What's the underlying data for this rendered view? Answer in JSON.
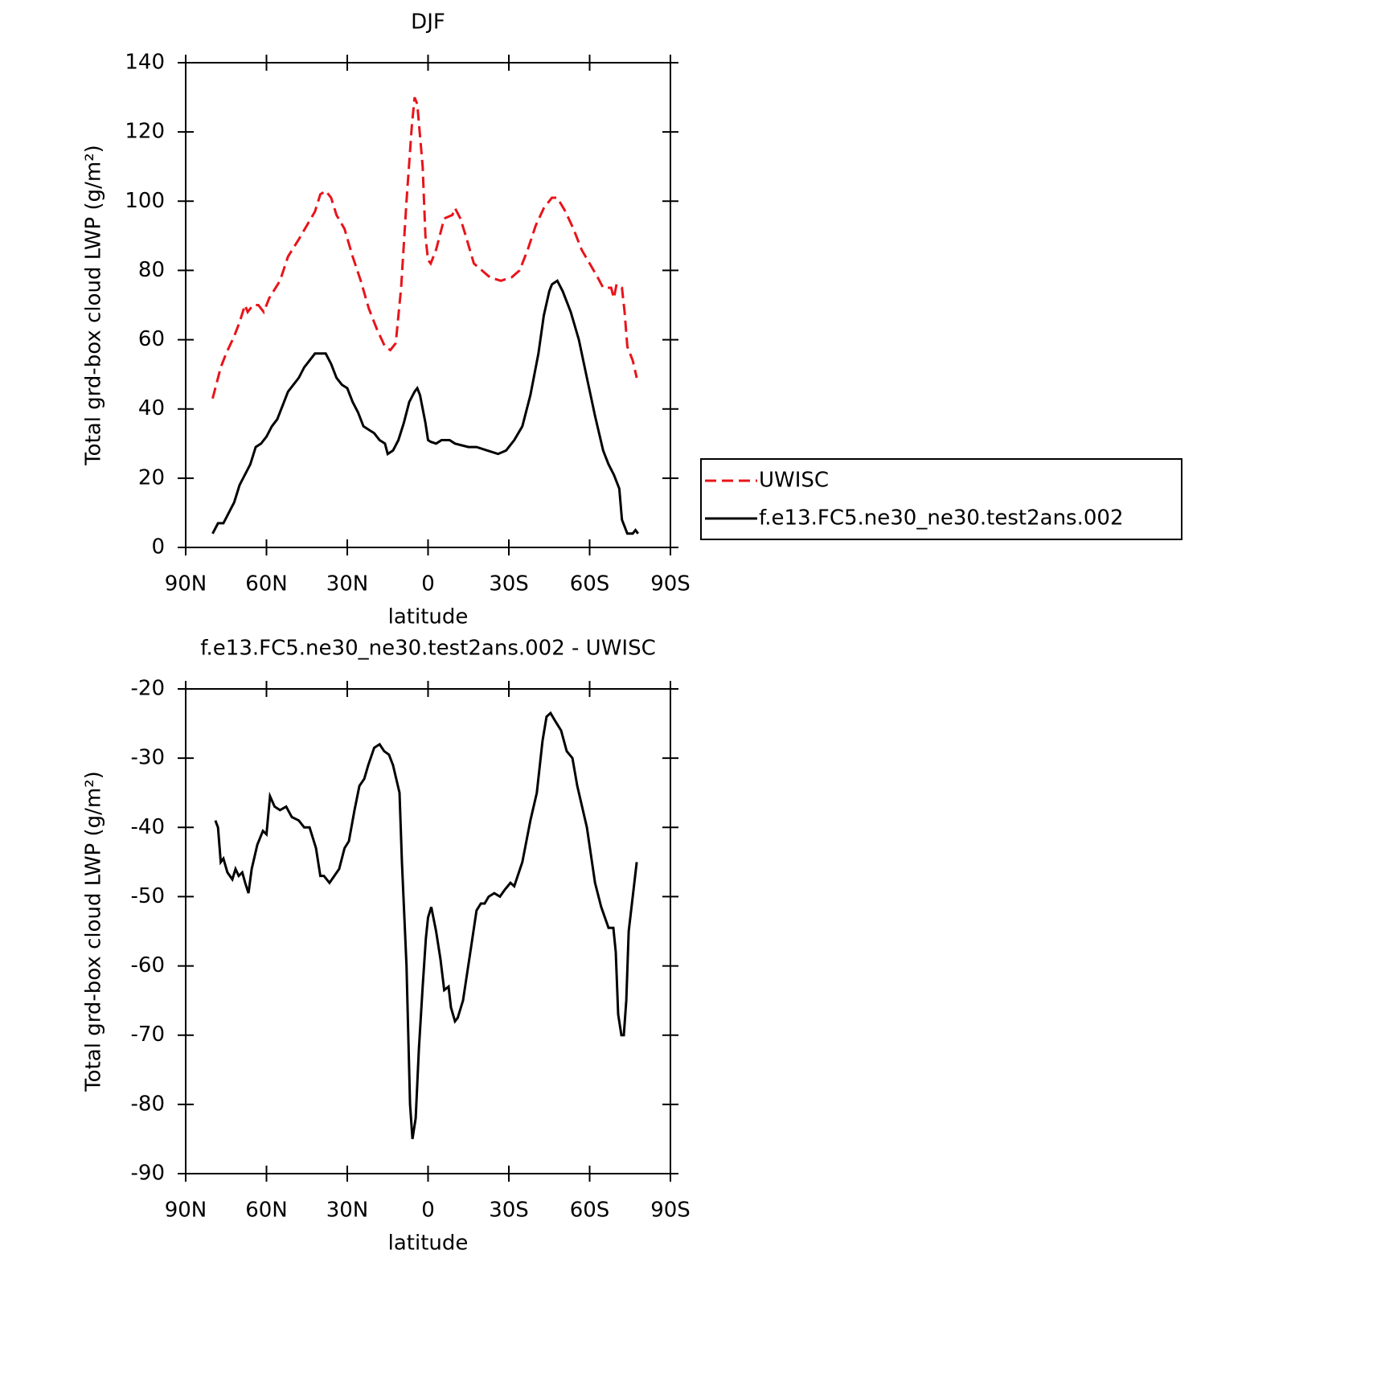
{
  "chart_data": [
    {
      "type": "line",
      "title": "DJF",
      "xlabel": "latitude",
      "ylabel": "Total grd-box cloud LWP (g/m²)",
      "xlim": [
        90,
        -90
      ],
      "xticks": [
        {
          "value": 90,
          "label": "90N"
        },
        {
          "value": 60,
          "label": "60N"
        },
        {
          "value": 30,
          "label": "30N"
        },
        0,
        {
          "value": -30,
          "label": "30S"
        },
        {
          "value": -60,
          "label": "60S"
        },
        {
          "value": -90,
          "label": "90S"
        }
      ],
      "ylim": [
        0,
        140
      ],
      "yticks": [
        0,
        20,
        40,
        60,
        80,
        100,
        120,
        140
      ],
      "legend": "right",
      "series": [
        {
          "name": "UWISC",
          "color": "#e8141a",
          "style": "dashed",
          "x": [
            80,
            77,
            75,
            72,
            70,
            68,
            67,
            65,
            63,
            61,
            59,
            55,
            52,
            48,
            45,
            42,
            40,
            38,
            36,
            34,
            31,
            28,
            25,
            22,
            19,
            16,
            14,
            12,
            10,
            8,
            6,
            5,
            4,
            2,
            1,
            0,
            -1,
            -3,
            -6,
            -9,
            -10,
            -12,
            -14,
            -17,
            -20,
            -23,
            -27,
            -31,
            -34,
            -37,
            -40,
            -43,
            -46,
            -48,
            -51,
            -54,
            -57,
            -60,
            -63,
            -65,
            -68,
            -69,
            -70,
            -72,
            -73,
            -74,
            -76,
            -77.5
          ],
          "values": [
            43,
            52,
            56,
            61,
            65,
            70,
            68,
            70,
            70,
            68,
            72,
            77,
            84,
            89,
            93,
            97,
            102,
            103,
            101,
            96,
            92,
            84,
            77,
            69,
            63,
            58,
            57,
            59,
            75,
            100,
            122,
            130,
            128,
            110,
            90,
            83,
            82,
            86,
            95,
            96,
            98,
            95,
            90,
            82,
            80,
            78,
            77,
            78,
            80,
            86,
            93,
            98,
            101,
            101,
            97,
            92,
            86,
            82,
            78,
            75,
            75,
            72,
            76,
            75,
            68,
            58,
            54,
            49
          ]
        },
        {
          "name": "f.e13.FC5.ne30_ne30.test2ans.002",
          "color": "#000000",
          "style": "solid",
          "x": [
            80,
            78,
            76,
            74,
            72,
            70,
            68,
            66,
            64,
            62,
            60,
            58,
            56,
            54,
            52,
            50,
            48,
            46,
            44,
            42,
            40,
            38,
            36,
            34,
            32,
            30,
            28,
            26,
            24,
            22,
            20,
            18,
            16,
            15,
            13,
            11,
            9,
            7,
            5,
            4,
            3,
            1,
            0,
            -1,
            -3,
            -5,
            -8,
            -10,
            -15,
            -18,
            -22,
            -26,
            -29,
            -32,
            -35,
            -38,
            -41,
            -43,
            -45,
            -46,
            -48,
            -50,
            -53,
            -56,
            -59,
            -62,
            -65,
            -67,
            -69,
            -71,
            -72,
            -74,
            -76,
            -77,
            -78
          ],
          "values": [
            4,
            7,
            7,
            10,
            13,
            18,
            21,
            24,
            29,
            30,
            32,
            35,
            37,
            41,
            45,
            47,
            49,
            52,
            54,
            56,
            56,
            56,
            53,
            49,
            47,
            46,
            42,
            39,
            35,
            34,
            33,
            31,
            30,
            27,
            28,
            31,
            36,
            42,
            45,
            46,
            44,
            36,
            31,
            30.5,
            30,
            31,
            31,
            30,
            29,
            29,
            28,
            27,
            28,
            31,
            35,
            44,
            56,
            67,
            74,
            76,
            77,
            74,
            68,
            60,
            49,
            38,
            28,
            24,
            21,
            17,
            8,
            4,
            4,
            5,
            4
          ]
        }
      ]
    },
    {
      "type": "line",
      "title": "f.e13.FC5.ne30_ne30.test2ans.002 - UWISC",
      "xlabel": "latitude",
      "ylabel": "Total grd-box cloud LWP (g/m²)",
      "xlim": [
        90,
        -90
      ],
      "xticks": [
        {
          "value": 90,
          "label": "90N"
        },
        {
          "value": 60,
          "label": "60N"
        },
        {
          "value": 30,
          "label": "30N"
        },
        0,
        {
          "value": -30,
          "label": "30S"
        },
        {
          "value": -60,
          "label": "60S"
        },
        {
          "value": -90,
          "label": "90S"
        }
      ],
      "ylim": [
        -90,
        -20
      ],
      "yticks": [
        -90,
        -80,
        -70,
        -60,
        -50,
        -40,
        -30,
        -20
      ],
      "series": [
        {
          "color": "#000000",
          "style": "solid",
          "x": [
            79,
            78,
            77,
            76,
            74.5,
            72.7,
            71.5,
            70.3,
            69,
            67.9,
            66.7,
            65.5,
            63.4,
            61.3,
            60,
            58.7,
            57,
            55,
            52.7,
            50.6,
            48,
            46,
            44,
            41.6,
            40,
            38.7,
            36.6,
            34.8,
            33,
            31,
            29.4,
            27.3,
            25.5,
            23.7,
            22.2,
            20,
            18,
            16.3,
            14.5,
            13,
            10.6,
            9.7,
            8,
            6.7,
            5.8,
            4.6,
            3.4,
            2,
            0.8,
            0,
            -1.2,
            -3,
            -4.6,
            -6,
            -7.6,
            -8.5,
            -10,
            -11,
            -13,
            -15.7,
            -18,
            -19.6,
            -21,
            -22.5,
            -24.6,
            -26.7,
            -28.5,
            -30.6,
            -32,
            -35,
            -38,
            -40.4,
            -42.5,
            -44,
            -45.5,
            -47,
            -49.4,
            -51.5,
            -53.6,
            -55.4,
            -59,
            -62,
            -64.3,
            -67,
            -68.8,
            -69.7,
            -70.6,
            -71.8,
            -72.7,
            -73.6,
            -74.5,
            -77.5
          ],
          "values": [
            -39,
            -40,
            -45,
            -44.5,
            -46.5,
            -47.5,
            -46,
            -47,
            -46.5,
            -48,
            -49.5,
            -46,
            -42.5,
            -40.5,
            -41,
            -35.5,
            -37,
            -37.5,
            -37,
            -38.5,
            -39,
            -40,
            -40,
            -43,
            -47,
            -47,
            -48,
            -47,
            -46,
            -43,
            -42,
            -37.5,
            -34,
            -33,
            -31,
            -28.5,
            -28,
            -29,
            -29.5,
            -31,
            -35,
            -45,
            -60,
            -80,
            -85,
            -82,
            -72,
            -63,
            -56,
            -53,
            -51.5,
            -55,
            -59,
            -63.5,
            -63,
            -66,
            -68,
            -67.5,
            -65,
            -58,
            -52,
            -51,
            -51,
            -50,
            -49.5,
            -50,
            -49,
            -48,
            -48.5,
            -45,
            -39,
            -35,
            -27.5,
            -24,
            -23.5,
            -24.5,
            -26,
            -29,
            -30,
            -34,
            -40,
            -48,
            -51.5,
            -54.5,
            -54.5,
            -58,
            -67,
            -70,
            -70,
            -65,
            -55,
            -45
          ]
        }
      ]
    }
  ]
}
